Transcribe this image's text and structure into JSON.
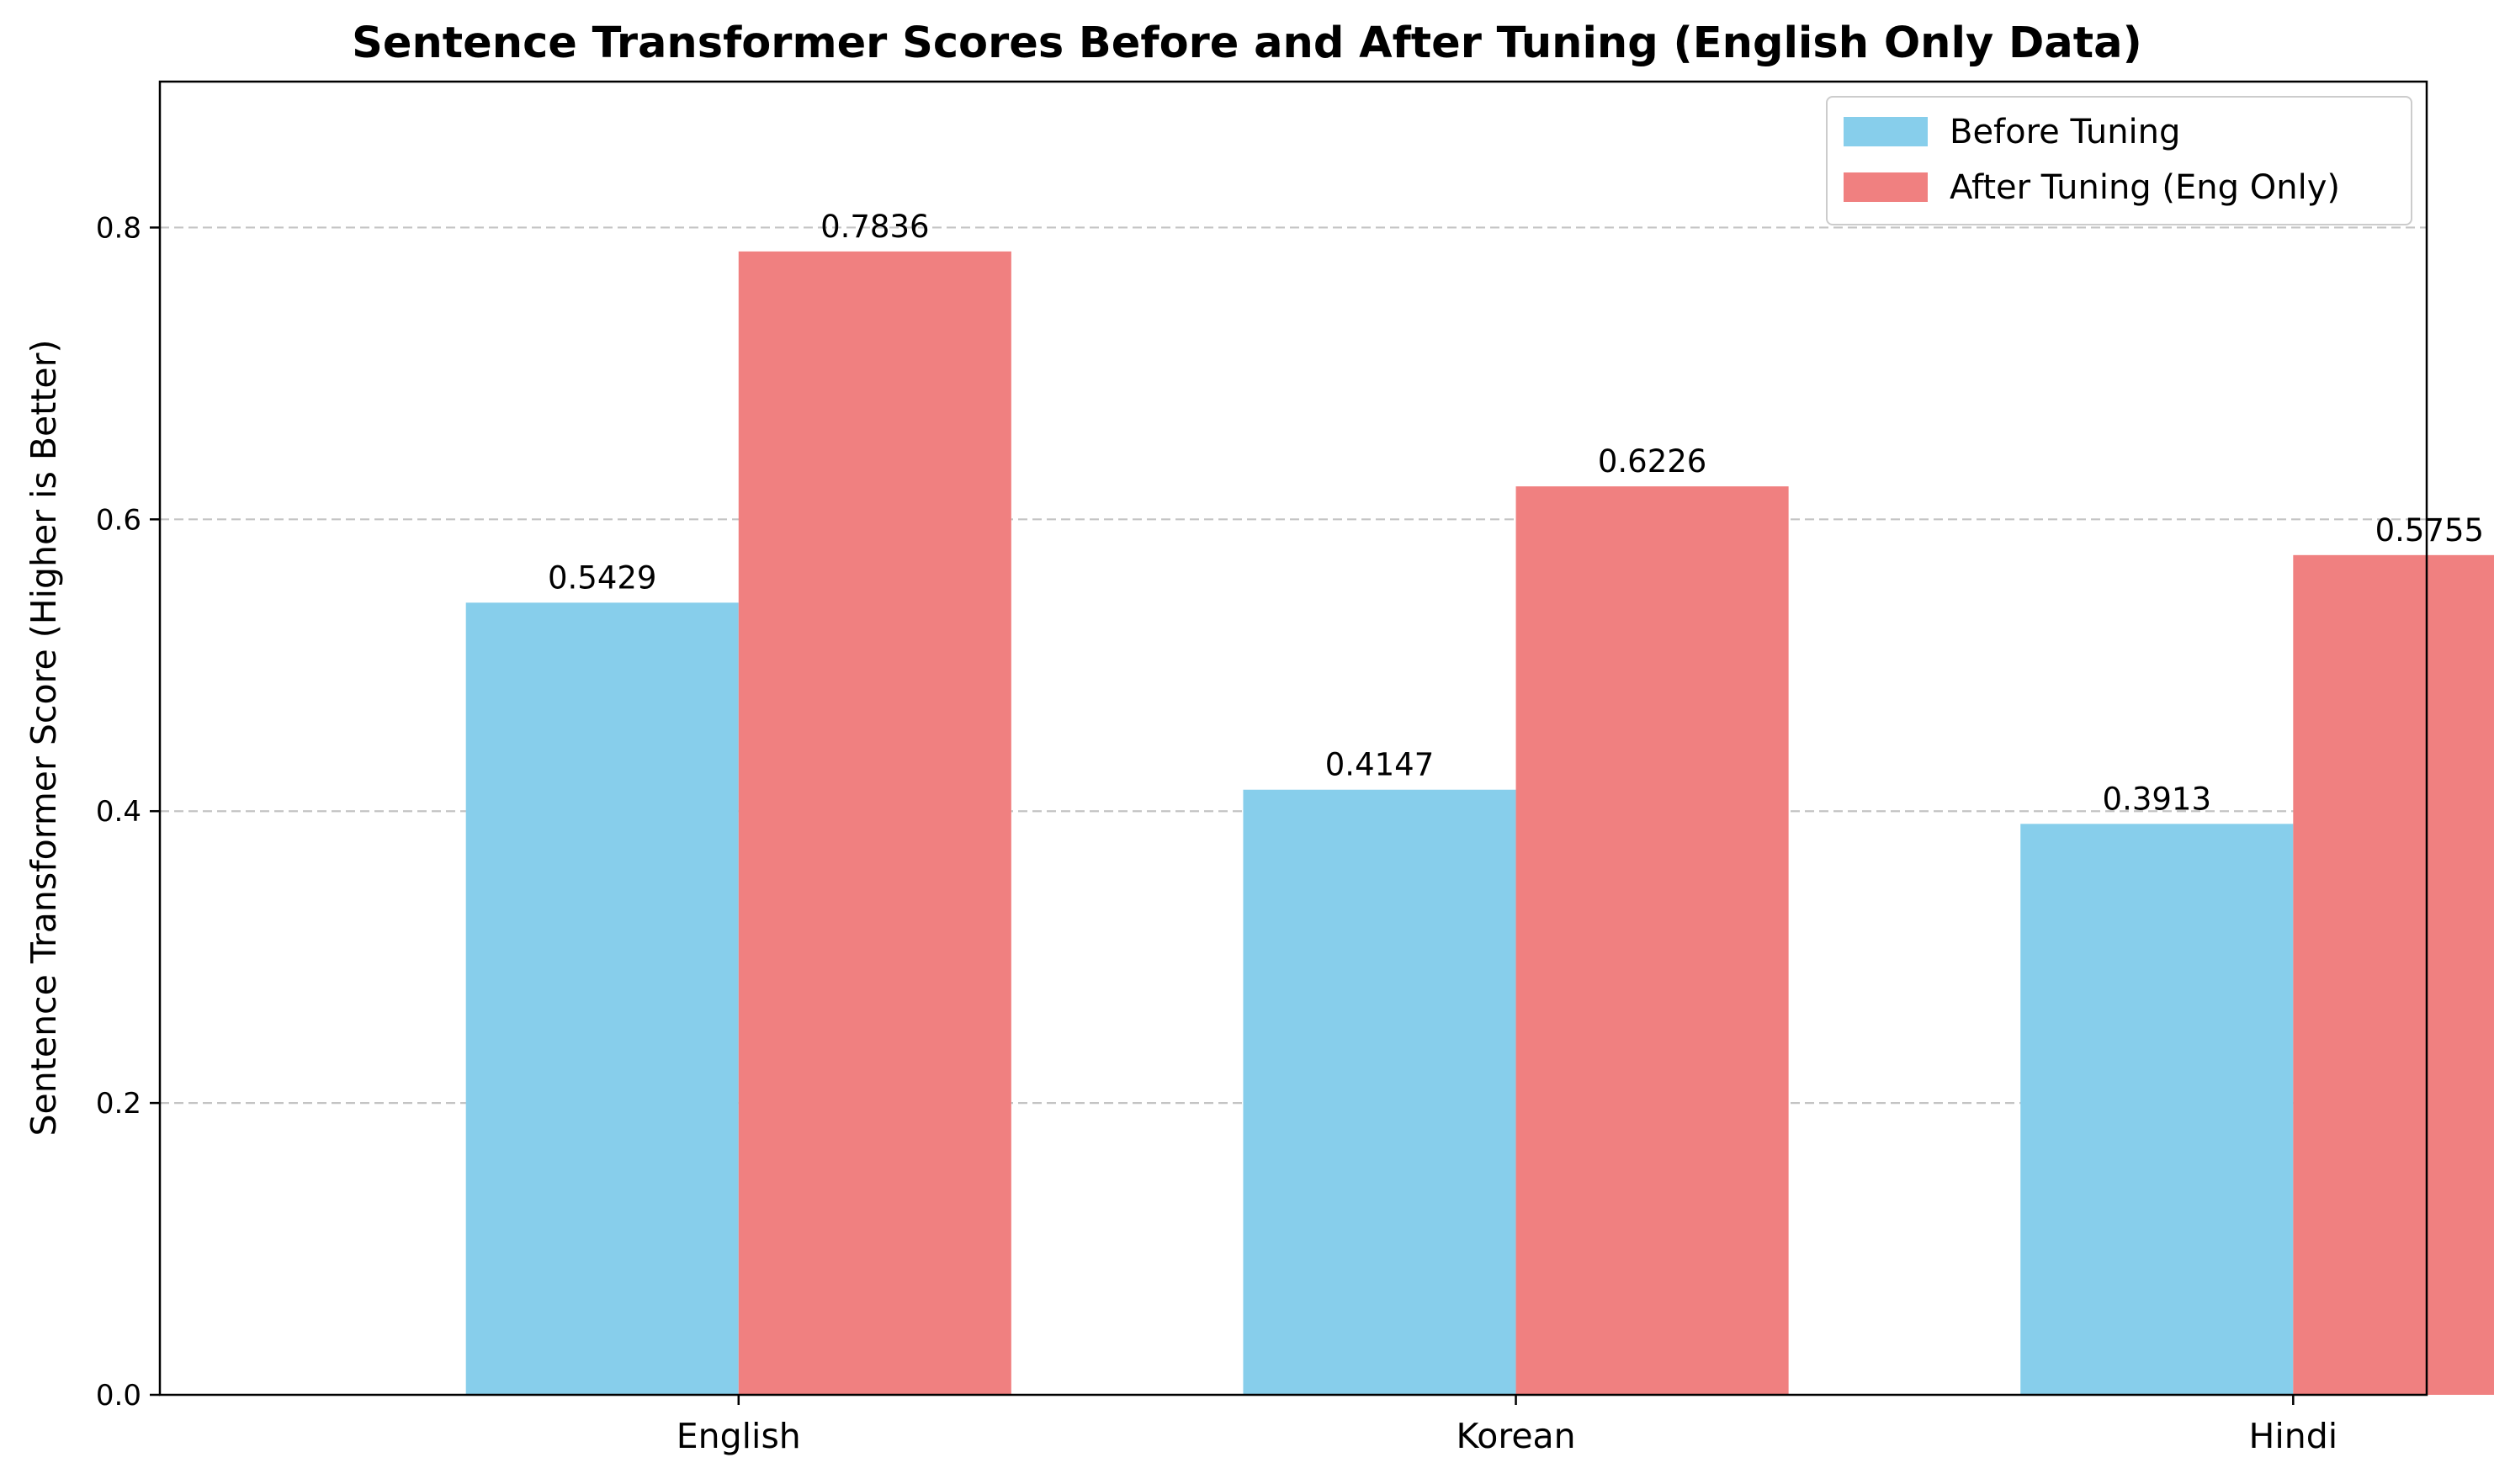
{
  "chart_data": {
    "type": "bar",
    "title": "Sentence Transformer Scores Before and After Tuning (English Only Data)",
    "xlabel": "",
    "ylabel": "Sentence Transformer Score (Higher is Better)",
    "categories": [
      "English",
      "Korean",
      "Hindi"
    ],
    "series": [
      {
        "name": "Before Tuning",
        "values": [
          0.5429,
          0.4147,
          0.3913
        ],
        "color": "#87ceeb"
      },
      {
        "name": "After Tuning (Eng Only)",
        "values": [
          0.7836,
          0.6226,
          0.5755
        ],
        "color": "#f08080"
      }
    ],
    "data_labels": [
      [
        "0.5429",
        "0.4147",
        "0.3913"
      ],
      [
        "0.7836",
        "0.6226",
        "0.5755"
      ]
    ],
    "ylim": [
      0,
      0.9
    ],
    "yticks": [
      0.0,
      0.2,
      0.4,
      0.6,
      0.8
    ],
    "ytick_labels": [
      "0.0",
      "0.2",
      "0.4",
      "0.6",
      "0.8"
    ],
    "grid": "y-dashed",
    "legend_position": "top-right"
  }
}
